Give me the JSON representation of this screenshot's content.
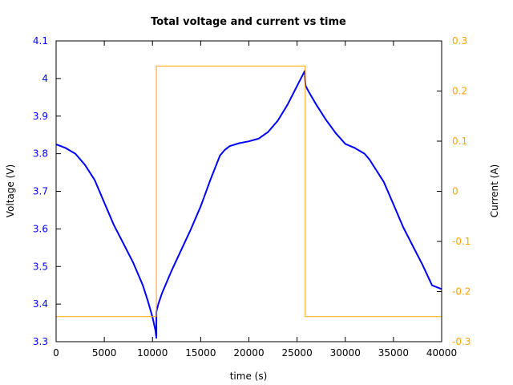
{
  "chart_data": {
    "type": "line",
    "title": "Total voltage and current vs time",
    "xlabel": "time (s)",
    "ylabel": "Voltage (V)",
    "y2label": "Current (A)",
    "xlim": [
      0,
      40000
    ],
    "ylim": [
      3.3,
      4.1
    ],
    "y2lim": [
      -0.3,
      0.3
    ],
    "xticks": [
      "0",
      "5000",
      "10000",
      "15000",
      "20000",
      "25000",
      "30000",
      "35000",
      "40000"
    ],
    "yticks": [
      "3.3",
      "3.4",
      "3.5",
      "3.6",
      "3.7",
      "3.8",
      "3.9",
      "4",
      "4.1"
    ],
    "y2ticks": [
      "-0.3",
      "-0.2",
      "-0.1",
      "0",
      "0.1",
      "0.2",
      "0.3"
    ],
    "grid": false,
    "legend": "none",
    "series": [
      {
        "axis": "left",
        "color": "#0000ff",
        "x": [
          0,
          1000,
          2000,
          3000,
          4000,
          5000,
          6000,
          7000,
          8000,
          9000,
          9500,
          10000,
          10300,
          10400,
          10400,
          10600,
          11000,
          12000,
          13000,
          14000,
          15000,
          16000,
          17000,
          17500,
          18000,
          19000,
          20000,
          21000,
          22000,
          23000,
          24000,
          25000,
          25600,
          25800,
          25850,
          25900,
          26200,
          27000,
          28000,
          29000,
          30000,
          31000,
          32000,
          32500,
          33000,
          34000,
          35000,
          36000,
          37000,
          38000,
          39000,
          40000
        ],
        "y": [
          3.825,
          3.815,
          3.8,
          3.77,
          3.73,
          3.67,
          3.61,
          3.56,
          3.51,
          3.45,
          3.41,
          3.365,
          3.33,
          3.31,
          3.38,
          3.4,
          3.43,
          3.49,
          3.545,
          3.6,
          3.66,
          3.73,
          3.795,
          3.81,
          3.82,
          3.828,
          3.833,
          3.84,
          3.858,
          3.888,
          3.93,
          3.98,
          4.01,
          4.02,
          3.99,
          3.98,
          3.965,
          3.93,
          3.89,
          3.855,
          3.826,
          3.815,
          3.8,
          3.785,
          3.765,
          3.725,
          3.665,
          3.605,
          3.555,
          3.505,
          3.45,
          3.44
        ]
      },
      {
        "axis": "right",
        "color": "#ffa500",
        "x": [
          0,
          10400,
          10400,
          25850,
          25850,
          40000
        ],
        "y": [
          -0.25,
          -0.25,
          0.25,
          0.25,
          -0.25,
          -0.25
        ]
      }
    ]
  }
}
